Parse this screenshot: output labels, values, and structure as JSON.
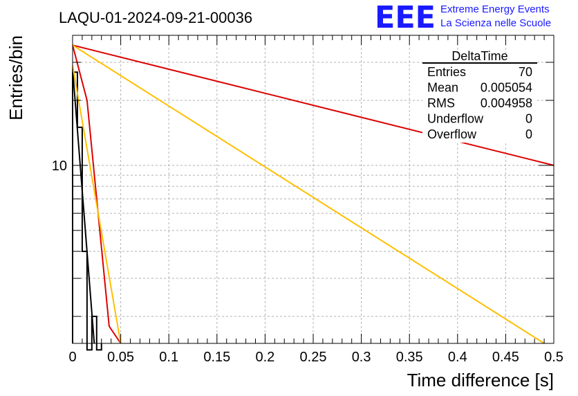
{
  "header": {
    "run_title": "LAQU-01-2024-09-21-00036",
    "logo_letters": "EEE",
    "logo_line1": "Extreme Energy Events",
    "logo_line2": "La Scienza nelle Scuole",
    "logo_color": "#1a1aff"
  },
  "stats_box": {
    "title": "DeltaTime",
    "rows": [
      {
        "label": "Entries",
        "value": "70"
      },
      {
        "label": "Mean",
        "value": "0.005054"
      },
      {
        "label": "RMS",
        "value": "0.004958"
      },
      {
        "label": "Underflow",
        "value": "0"
      },
      {
        "label": "Overflow",
        "value": "0"
      }
    ]
  },
  "chart_data": {
    "type": "line",
    "title": "LAQU-01-2024-09-21-00036",
    "xlabel": "Time difference [s]",
    "ylabel": "Entries/bin",
    "xlim": [
      0,
      0.5
    ],
    "ylim": [
      1.5,
      40
    ],
    "yscale": "log",
    "grid": true,
    "x_ticks": [
      "0",
      "0.05",
      "0.1",
      "0.15",
      "0.2",
      "0.25",
      "0.3",
      "0.35",
      "0.4",
      "0.45",
      "0.5"
    ],
    "y_ticks": [
      "10"
    ],
    "histogram": {
      "color": "#000000",
      "bin_edges": [
        0,
        0.005,
        0.01,
        0.015,
        0.02,
        0.025,
        0.03
      ],
      "counts": [
        27,
        15,
        4,
        1.4,
        2,
        1.4
      ]
    },
    "series": [
      {
        "color": "#000000",
        "x": [
          0,
          0.0225
        ],
        "y": [
          28,
          1.5
        ]
      },
      {
        "color": "#dd0000",
        "x": [
          0,
          0.015,
          0.038,
          0.05
        ],
        "y": [
          36,
          20,
          1.8,
          1.5
        ]
      },
      {
        "color": "#ffbf00",
        "x": [
          0,
          0.05
        ],
        "y": [
          29,
          1.5
        ]
      },
      {
        "color": "#dd0000",
        "x": [
          0,
          0.5
        ],
        "y": [
          36,
          10
        ]
      },
      {
        "color": "#ffbf00",
        "x": [
          0,
          0.49
        ],
        "y": [
          36,
          1.5
        ]
      }
    ]
  }
}
